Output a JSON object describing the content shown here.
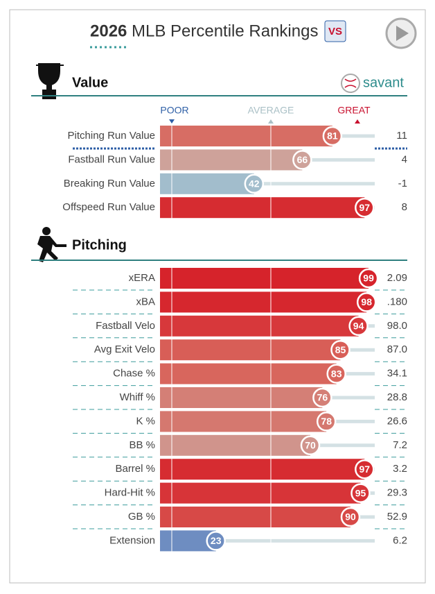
{
  "header": {
    "year": "2026",
    "title": "MLB Percentile Rankings",
    "brand": "savant"
  },
  "scale": {
    "poor": "POOR",
    "average": "AVERAGE",
    "great": "GREAT"
  },
  "sections": [
    {
      "title": "Value",
      "rows": [
        {
          "label": "Pitching Run Value",
          "percentile": 81,
          "stat": "11"
        },
        {
          "label": "Fastball Run Value",
          "percentile": 66,
          "stat": "4"
        },
        {
          "label": "Breaking Run Value",
          "percentile": 42,
          "stat": "-1"
        },
        {
          "label": "Offspeed Run Value",
          "percentile": 97,
          "stat": "8"
        }
      ]
    },
    {
      "title": "Pitching",
      "rows": [
        {
          "label": "xERA",
          "percentile": 99,
          "stat": "2.09"
        },
        {
          "label": "xBA",
          "percentile": 98,
          "stat": ".180"
        },
        {
          "label": "Fastball Velo",
          "percentile": 94,
          "stat": "98.0"
        },
        {
          "label": "Avg Exit Velo",
          "percentile": 85,
          "stat": "87.0"
        },
        {
          "label": "Chase %",
          "percentile": 83,
          "stat": "34.1"
        },
        {
          "label": "Whiff %",
          "percentile": 76,
          "stat": "28.8"
        },
        {
          "label": "K %",
          "percentile": 78,
          "stat": "26.6"
        },
        {
          "label": "BB %",
          "percentile": 70,
          "stat": "7.2"
        },
        {
          "label": "Barrel %",
          "percentile": 97,
          "stat": "3.2"
        },
        {
          "label": "Hard-Hit %",
          "percentile": 95,
          "stat": "29.3"
        },
        {
          "label": "GB %",
          "percentile": 90,
          "stat": "52.9"
        },
        {
          "label": "Extension",
          "percentile": 23,
          "stat": "6.2"
        }
      ]
    }
  ]
}
